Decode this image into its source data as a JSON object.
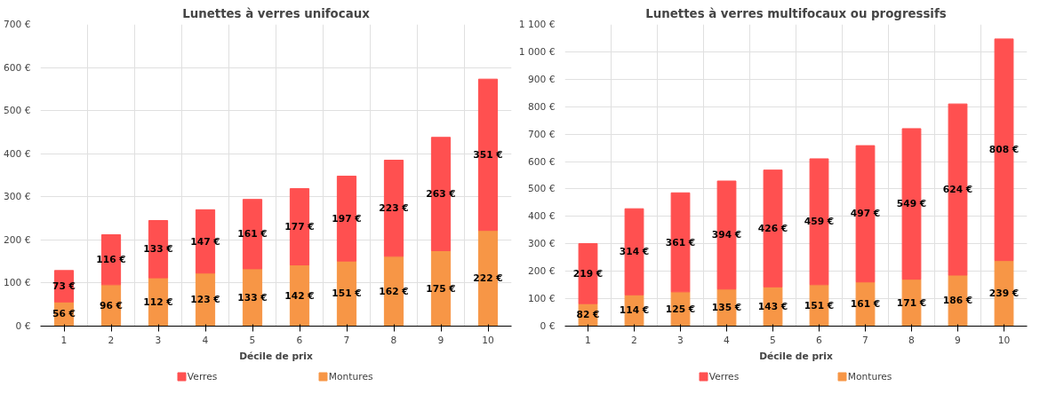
{
  "chart_data": [
    {
      "type": "bar",
      "title": "Lunettes à verres unifocaux",
      "xlabel": "Décile de prix",
      "categories": [
        "1",
        "2",
        "3",
        "4",
        "5",
        "6",
        "7",
        "8",
        "9",
        "10"
      ],
      "stacked": true,
      "grid": true,
      "legend": "bottom",
      "ylim": [
        0,
        700
      ],
      "yticks": [
        {
          "value": 0,
          "label": "0 €"
        },
        {
          "value": 100,
          "label": "100 €"
        },
        {
          "value": 200,
          "label": "200 €"
        },
        {
          "value": 300,
          "label": "300 €"
        },
        {
          "value": 400,
          "label": "400 €"
        },
        {
          "value": 500,
          "label": "500 €"
        },
        {
          "value": 600,
          "label": "600 €"
        },
        {
          "value": 700,
          "label": "700 €"
        }
      ],
      "series": [
        {
          "name": "Montures",
          "color": "#f79646",
          "values": [
            56,
            96,
            112,
            123,
            133,
            142,
            151,
            162,
            175,
            222
          ],
          "value_labels": [
            "56 €",
            "96 €",
            "112 €",
            "123 €",
            "133 €",
            "142 €",
            "151 €",
            "162 €",
            "175 €",
            "222 €"
          ]
        },
        {
          "name": "Verres",
          "color": "#ff5050",
          "values": [
            73,
            116,
            133,
            147,
            161,
            177,
            197,
            223,
            263,
            351
          ],
          "value_labels": [
            "73 €",
            "116 €",
            "133 €",
            "147 €",
            "161 €",
            "177 €",
            "197 €",
            "223 €",
            "263 €",
            "351 €"
          ]
        }
      ]
    },
    {
      "type": "bar",
      "title": "Lunettes à verres multifocaux ou progressifs",
      "xlabel": "Décile de prix",
      "categories": [
        "1",
        "2",
        "3",
        "4",
        "5",
        "6",
        "7",
        "8",
        "9",
        "10"
      ],
      "stacked": true,
      "grid": true,
      "legend": "bottom",
      "ylim": [
        0,
        1100
      ],
      "yticks": [
        {
          "value": 0,
          "label": "0 €"
        },
        {
          "value": 100,
          "label": "100 €"
        },
        {
          "value": 200,
          "label": "200 €"
        },
        {
          "value": 300,
          "label": "300 €"
        },
        {
          "value": 400,
          "label": "400 €"
        },
        {
          "value": 500,
          "label": "500 €"
        },
        {
          "value": 600,
          "label": "600 €"
        },
        {
          "value": 700,
          "label": "700 €"
        },
        {
          "value": 800,
          "label": "800 €"
        },
        {
          "value": 900,
          "label": "900 €"
        },
        {
          "value": 1000,
          "label": "1 000 €"
        },
        {
          "value": 1100,
          "label": "1 100 €"
        }
      ],
      "series": [
        {
          "name": "Montures",
          "color": "#f79646",
          "values": [
            82,
            114,
            125,
            135,
            143,
            151,
            161,
            171,
            186,
            239
          ],
          "value_labels": [
            "82 €",
            "114 €",
            "125 €",
            "135 €",
            "143 €",
            "151 €",
            "161 €",
            "171 €",
            "186 €",
            "239 €"
          ]
        },
        {
          "name": "Verres",
          "color": "#ff5050",
          "values": [
            219,
            314,
            361,
            394,
            426,
            459,
            497,
            549,
            624,
            808
          ],
          "value_labels": [
            "219 €",
            "314 €",
            "361 €",
            "394 €",
            "426 €",
            "459 €",
            "497 €",
            "549 €",
            "624 €",
            "808 €"
          ]
        }
      ]
    }
  ]
}
